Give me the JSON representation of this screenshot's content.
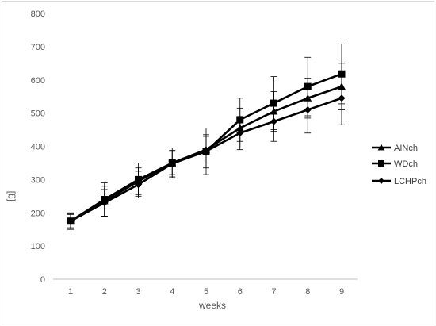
{
  "chart_data": {
    "type": "line",
    "title": "",
    "xlabel": "weeks",
    "ylabel": "[g]",
    "x": [
      1,
      2,
      3,
      4,
      5,
      6,
      7,
      8,
      9
    ],
    "xticks": [
      "1",
      "2",
      "3",
      "4",
      "5",
      "6",
      "7",
      "8",
      "9"
    ],
    "ylim": [
      0,
      800
    ],
    "yticks": [
      0,
      100,
      200,
      300,
      400,
      500,
      600,
      700,
      800
    ],
    "grid": false,
    "legend_position": "right",
    "series": [
      {
        "name": "AINch",
        "marker": "triangle",
        "values": [
          175,
          235,
          295,
          350,
          390,
          455,
          505,
          545,
          580
        ],
        "errors": [
          22,
          45,
          40,
          35,
          40,
          60,
          60,
          60,
          70
        ]
      },
      {
        "name": "WDch",
        "marker": "square",
        "values": [
          175,
          240,
          300,
          350,
          385,
          480,
          530,
          580,
          618
        ],
        "errors": [
          25,
          50,
          50,
          45,
          70,
          65,
          80,
          88,
          90
        ]
      },
      {
        "name": "LCHPch",
        "marker": "diamond",
        "values": [
          175,
          230,
          285,
          348,
          385,
          440,
          475,
          510,
          545
        ],
        "errors": [
          20,
          40,
          40,
          40,
          50,
          50,
          60,
          70,
          80
        ]
      }
    ],
    "colors": {
      "line": "#000000",
      "axis": "#bfbfbf",
      "text": "#595959"
    }
  }
}
